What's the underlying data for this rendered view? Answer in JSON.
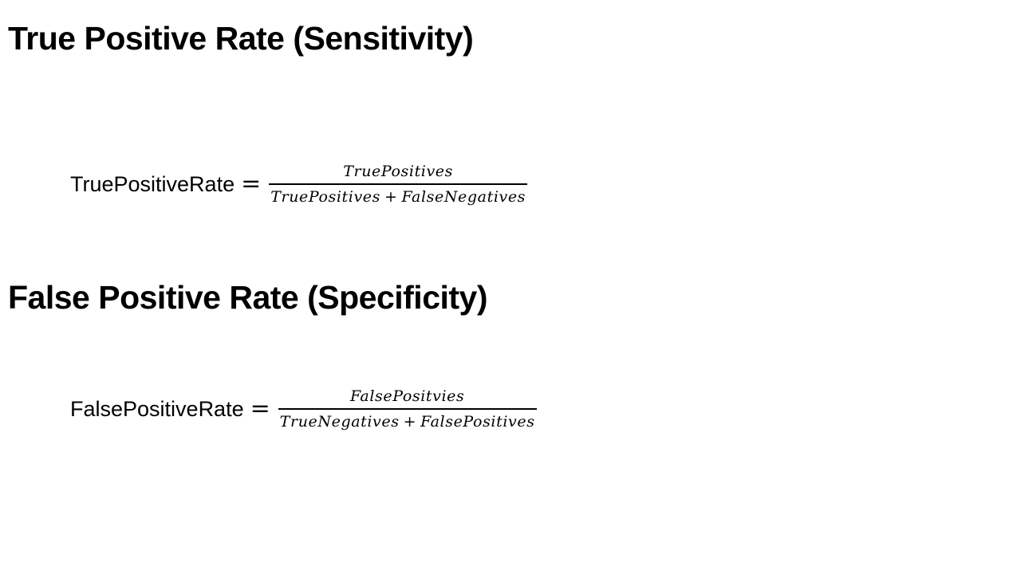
{
  "sections": [
    {
      "heading": "True Positive Rate (Sensitivity)",
      "formula": {
        "lhs": "TruePositiveRate",
        "equals": "=",
        "numerator": "TruePositives",
        "denominator": {
          "term1": "TruePositives",
          "operator": "+",
          "term2": "FalseNegatives"
        }
      }
    },
    {
      "heading": "False Positive Rate (Specificity)",
      "formula": {
        "lhs": "FalsePositiveRate",
        "equals": "=",
        "numerator": "FalsePositvies",
        "denominator": {
          "term1": "TrueNegatives",
          "operator": "+",
          "term2": "FalsePositives"
        }
      }
    }
  ]
}
